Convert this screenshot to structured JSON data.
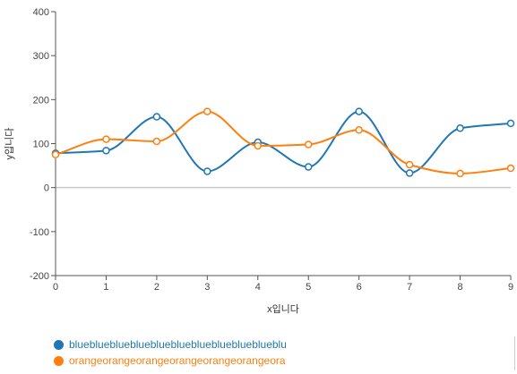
{
  "chart_data": {
    "type": "line",
    "x": [
      0,
      1,
      2,
      3,
      4,
      5,
      6,
      7,
      8,
      9
    ],
    "xlabel": "x입니다",
    "ylabel": "y입니다",
    "ylim": [
      -200,
      400
    ],
    "yticks": [
      -200,
      -100,
      0,
      100,
      200,
      300,
      400
    ],
    "xticks": [
      0,
      1,
      2,
      3,
      4,
      5,
      6,
      7,
      8,
      9
    ],
    "series": [
      {
        "name": "blueblueblueblueblueblueblueblueblueblueblue",
        "color": "#1f77b4",
        "values": [
          78,
          84,
          161,
          37,
          103,
          47,
          173,
          33,
          135,
          146
        ]
      },
      {
        "name": "orangeorangeorangeorangeorangeorangeorangeorange",
        "color": "#ff7f0e",
        "values": [
          75,
          110,
          105,
          173,
          95,
          98,
          131,
          52,
          32,
          44
        ]
      }
    ],
    "grid": false,
    "legend_position": "bottom-left"
  }
}
